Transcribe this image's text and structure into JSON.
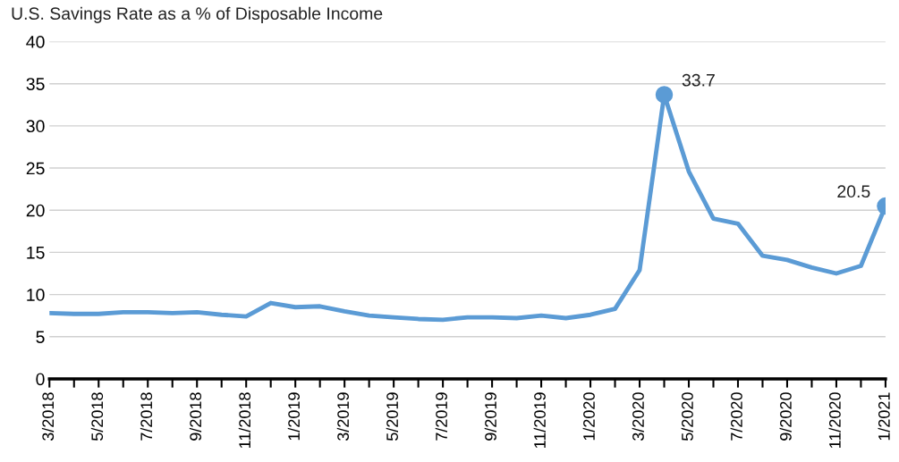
{
  "chart_data": {
    "type": "line",
    "title": "U.S. Savings Rate as a % of Disposable Income",
    "categories": [
      "3/2018",
      null,
      "5/2018",
      null,
      "7/2018",
      null,
      "9/2018",
      null,
      "11/2018",
      null,
      "1/2019",
      null,
      "3/2019",
      null,
      "5/2019",
      null,
      "7/2019",
      null,
      "9/2019",
      null,
      "11/2019",
      null,
      "1/2020",
      null,
      "3/2020",
      null,
      "5/2020",
      null,
      "7/2020",
      null,
      "9/2020",
      null,
      "11/2020",
      null,
      "1/2021"
    ],
    "series": [
      {
        "color": "#5b9bd5",
        "values": [
          7.8,
          7.7,
          7.7,
          7.9,
          7.9,
          7.8,
          7.9,
          7.6,
          7.4,
          9.0,
          8.5,
          8.6,
          8.0,
          7.5,
          7.3,
          7.1,
          7.0,
          7.3,
          7.3,
          7.2,
          7.5,
          7.2,
          7.6,
          8.3,
          12.9,
          33.7,
          24.6,
          19.0,
          18.4,
          14.6,
          14.1,
          13.2,
          12.5,
          13.4,
          20.5
        ],
        "value_labels": [
          null,
          null,
          null,
          null,
          null,
          null,
          null,
          null,
          null,
          null,
          null,
          null,
          null,
          null,
          null,
          null,
          null,
          null,
          null,
          null,
          null,
          null,
          null,
          null,
          null,
          "33.7",
          null,
          null,
          null,
          null,
          null,
          null,
          null,
          null,
          "20.5"
        ]
      }
    ],
    "ylim": [
      0,
      40
    ],
    "yticks": [
      0,
      5,
      10,
      15,
      20,
      25,
      30,
      35,
      40
    ],
    "grid": "y"
  }
}
